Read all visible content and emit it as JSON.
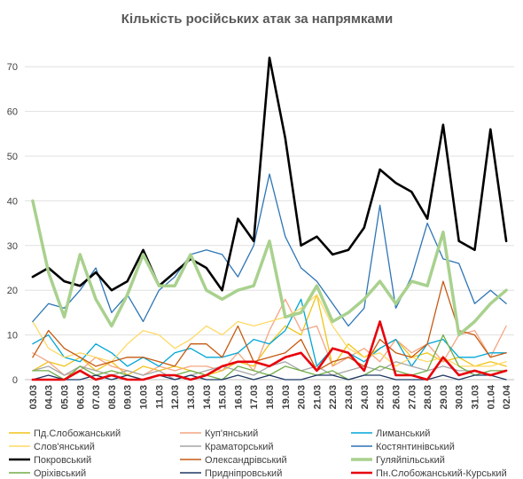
{
  "chart_data": {
    "type": "line",
    "title": "Кількість російських атак за напрямками",
    "xlabel": "",
    "ylabel": "",
    "ylim": [
      0,
      75
    ],
    "yticks": [
      0,
      10,
      20,
      30,
      40,
      50,
      60,
      70
    ],
    "grid": true,
    "legend_position": "bottom",
    "categories": [
      "03.03",
      "04.03",
      "05.03",
      "06.03",
      "07.03",
      "08.03",
      "09.03",
      "10.03",
      "11.03",
      "12.03",
      "13.03",
      "14.03",
      "15.03",
      "16.03",
      "17.03",
      "18.03",
      "19.03",
      "20.03",
      "21.03",
      "22.03",
      "23.03",
      "24.03",
      "25.03",
      "26.03",
      "27.03",
      "28.03",
      "29.03",
      "30.03",
      "31.03",
      "01.04",
      "02.04"
    ],
    "series": [
      {
        "name": "Пд.Слобожанський",
        "color": "#f0c419",
        "width": 1.3,
        "values": [
          2,
          4,
          3,
          5,
          2,
          4,
          1,
          3,
          2,
          3,
          2,
          1,
          2,
          4,
          3,
          8,
          12,
          10,
          19,
          3,
          8,
          5,
          7,
          9,
          5,
          6,
          4,
          5,
          3,
          4,
          3
        ]
      },
      {
        "name": "Куп'янський",
        "color": "#f4a582",
        "width": 1.3,
        "values": [
          6,
          4,
          1,
          2,
          5,
          3,
          2,
          1,
          3,
          2,
          3,
          3,
          2,
          6,
          2,
          11,
          18,
          11,
          12,
          3,
          5,
          7,
          4,
          9,
          6,
          8,
          4,
          10,
          11,
          5,
          12
        ]
      },
      {
        "name": "Лиманський",
        "color": "#00a6d6",
        "width": 1.3,
        "values": [
          8,
          10,
          5,
          4,
          8,
          6,
          3,
          5,
          3,
          6,
          7,
          5,
          5,
          6,
          9,
          8,
          11,
          18,
          3,
          7,
          6,
          4,
          7,
          9,
          3,
          8,
          9,
          5,
          5,
          6,
          6
        ]
      },
      {
        "name": "Слов'янський",
        "color": "#ffd966",
        "width": 1.3,
        "values": [
          13,
          7,
          5,
          6,
          5,
          4,
          8,
          11,
          10,
          7,
          9,
          12,
          10,
          13,
          12,
          13,
          14,
          16,
          19,
          12,
          7,
          5,
          6,
          3,
          5,
          4,
          5,
          3,
          3,
          3,
          4
        ]
      },
      {
        "name": "Краматорський",
        "color": "#a6a6a6",
        "width": 1.3,
        "values": [
          2,
          3,
          1,
          3,
          2,
          1,
          2,
          1,
          2,
          0,
          1,
          2,
          3,
          2,
          1,
          3,
          4,
          2,
          3,
          1,
          2,
          3,
          2,
          4,
          3,
          2,
          3,
          2,
          2,
          1,
          2
        ]
      },
      {
        "name": "Костянтинівський",
        "color": "#2e75b6",
        "width": 1.3,
        "values": [
          13,
          17,
          16,
          20,
          25,
          15,
          19,
          13,
          20,
          23,
          28,
          29,
          28,
          23,
          30,
          46,
          32,
          25,
          22,
          17,
          12,
          16,
          39,
          16,
          23,
          35,
          27,
          26,
          17,
          20,
          17
        ]
      },
      {
        "name": "Покровський",
        "color": "#000000",
        "width": 2.6,
        "values": [
          23,
          25,
          22,
          21,
          24,
          20,
          22,
          29,
          21,
          24,
          27,
          25,
          20,
          36,
          31,
          72,
          54,
          30,
          32,
          28,
          29,
          34,
          47,
          44,
          42,
          36,
          57,
          31,
          29,
          56,
          31
        ]
      },
      {
        "name": "Олександрівський",
        "color": "#c55a11",
        "width": 1.3,
        "values": [
          5,
          11,
          7,
          5,
          3,
          4,
          5,
          5,
          4,
          3,
          8,
          8,
          5,
          12,
          4,
          5,
          6,
          9,
          2,
          4,
          5,
          3,
          9,
          6,
          5,
          8,
          22,
          11,
          10,
          5,
          6
        ]
      },
      {
        "name": "Гуляйпільський",
        "color": "#a9d18e",
        "width": 3.5,
        "values": [
          40,
          24,
          14,
          28,
          18,
          12,
          19,
          28,
          21,
          21,
          28,
          20,
          18,
          20,
          21,
          31,
          14,
          15,
          21,
          13,
          15,
          18,
          22,
          17,
          22,
          21,
          33,
          10,
          13,
          17,
          20
        ]
      },
      {
        "name": "Оріхівський",
        "color": "#70ad47",
        "width": 1.3,
        "values": [
          2,
          2,
          0,
          3,
          1,
          2,
          1,
          0,
          1,
          1,
          2,
          1,
          0,
          3,
          2,
          1,
          3,
          2,
          1,
          2,
          0,
          1,
          3,
          2,
          1,
          2,
          10,
          3,
          1,
          2,
          2
        ]
      },
      {
        "name": "Придніпровський",
        "color": "#1f3864",
        "width": 1.3,
        "values": [
          0,
          1,
          0,
          0,
          1,
          0,
          1,
          0,
          1,
          0,
          1,
          0,
          0,
          1,
          0,
          1,
          0,
          0,
          1,
          1,
          0,
          1,
          1,
          0,
          0,
          0,
          1,
          0,
          1,
          1,
          0
        ]
      },
      {
        "name": "Пн.Слобожанський-Курський",
        "color": "#e8000b",
        "width": 2.6,
        "values": [
          0,
          0,
          0,
          2,
          0,
          1,
          0,
          0,
          1,
          1,
          0,
          1,
          3,
          4,
          4,
          3,
          5,
          6,
          2,
          7,
          6,
          2,
          13,
          1,
          1,
          0,
          5,
          1,
          2,
          1,
          2
        ]
      }
    ]
  }
}
